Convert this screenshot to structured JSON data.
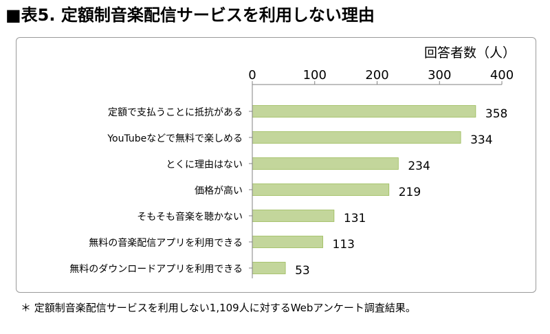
{
  "title": "■表5. 定額制音楽配信サービスを利用しない理由",
  "footnote": "＊ 定額制音楽配信サービスを利用しない1,109人に対するWebアンケート調査結果。",
  "chart_data": {
    "type": "bar",
    "orientation": "horizontal",
    "xlabel": "回答者数（人）",
    "xlim": [
      0,
      400
    ],
    "xticks": [
      0,
      100,
      200,
      300,
      400
    ],
    "grid": false,
    "categories": [
      "定額で支払うことに抵抗がある",
      "YouTubeなどで無料で楽しめる",
      "とくに理由はない",
      "価格が高い",
      "そもそも音楽を聴かない",
      "無料の音楽配信アプリを利用できる",
      "無料のダウンロードアプリを利用できる"
    ],
    "values": [
      358,
      334,
      234,
      219,
      131,
      113,
      53
    ],
    "bar_color": "#c3d69b",
    "bar_edge_color": "#9bbb59"
  }
}
